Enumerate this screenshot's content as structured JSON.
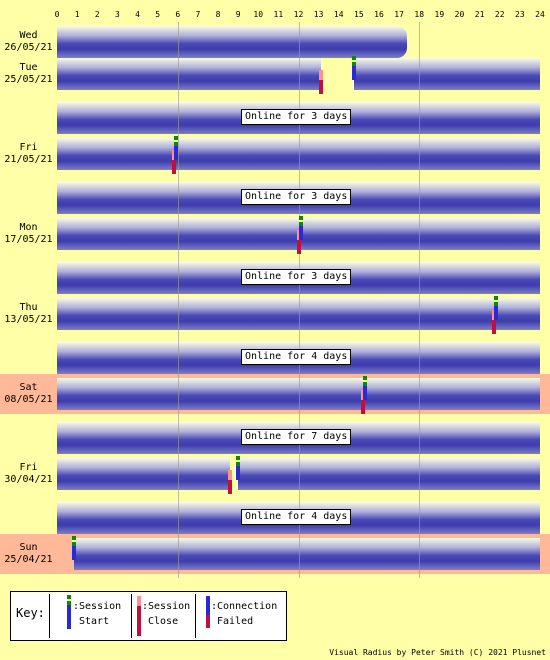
{
  "hour_ticks": [
    "0",
    "1",
    "2",
    "3",
    "4",
    "5",
    "6",
    "7",
    "8",
    "9",
    "10",
    "11",
    "12",
    "13",
    "14",
    "15",
    "16",
    "17",
    "18",
    "19",
    "20",
    "21",
    "22",
    "23",
    "24"
  ],
  "days": [
    {
      "line1": "Wed",
      "line2": "26/05/21",
      "highlight": false
    },
    {
      "line1": "Tue",
      "line2": "25/05/21",
      "highlight": false
    },
    {
      "line1": "Fri",
      "line2": "21/05/21",
      "highlight": false
    },
    {
      "line1": "Mon",
      "line2": "17/05/21",
      "highlight": false
    },
    {
      "line1": "Thu",
      "line2": "13/05/21",
      "highlight": false
    },
    {
      "line1": "Sat",
      "line2": "08/05/21",
      "highlight": true
    },
    {
      "line1": "Fri",
      "line2": "30/04/21",
      "highlight": false
    },
    {
      "line1": "Sun",
      "line2": "25/04/21",
      "highlight": true
    }
  ],
  "online_labels": [
    "Online for 3 days",
    "Online for 3 days",
    "Online for 3 days",
    "Online for 4 days",
    "Online for 7 days",
    "Online for 4 days"
  ],
  "key": {
    "title": "Key:",
    "session_start_line1": ":Session",
    "session_start_line2": "Start",
    "session_close_line1": ":Session",
    "session_close_line2": "Close",
    "conn_failed_line1": ":Connection",
    "conn_failed_line2": "Failed"
  },
  "footer": "Visual Radius by Peter Smith (C) 2021 Plusnet",
  "colors": {
    "background": "#ffffa8",
    "highlight_day": "#ffb898",
    "session_bar": "#3c3cae"
  },
  "events": [
    {
      "day": 0,
      "type": "session-end-hour",
      "hour": 17.4
    },
    {
      "day": 1,
      "type": "session-close",
      "hour": 13.1
    },
    {
      "day": 1,
      "type": "session-start",
      "hour": 14.75
    },
    {
      "day": 2,
      "type": "session-close",
      "hour": 5.8
    },
    {
      "day": 2,
      "type": "session-start",
      "hour": 5.9
    },
    {
      "day": 3,
      "type": "session-close",
      "hour": 12.0
    },
    {
      "day": 3,
      "type": "session-start",
      "hour": 12.1
    },
    {
      "day": 4,
      "type": "session-close",
      "hour": 21.7
    },
    {
      "day": 4,
      "type": "session-start",
      "hour": 21.8
    },
    {
      "day": 5,
      "type": "session-close",
      "hour": 15.2
    },
    {
      "day": 5,
      "type": "session-start",
      "hour": 15.3
    },
    {
      "day": 6,
      "type": "session-close",
      "hour": 8.6
    },
    {
      "day": 6,
      "type": "session-start",
      "hour": 9.0
    },
    {
      "day": 7,
      "type": "session-start",
      "hour": 0.85
    }
  ]
}
